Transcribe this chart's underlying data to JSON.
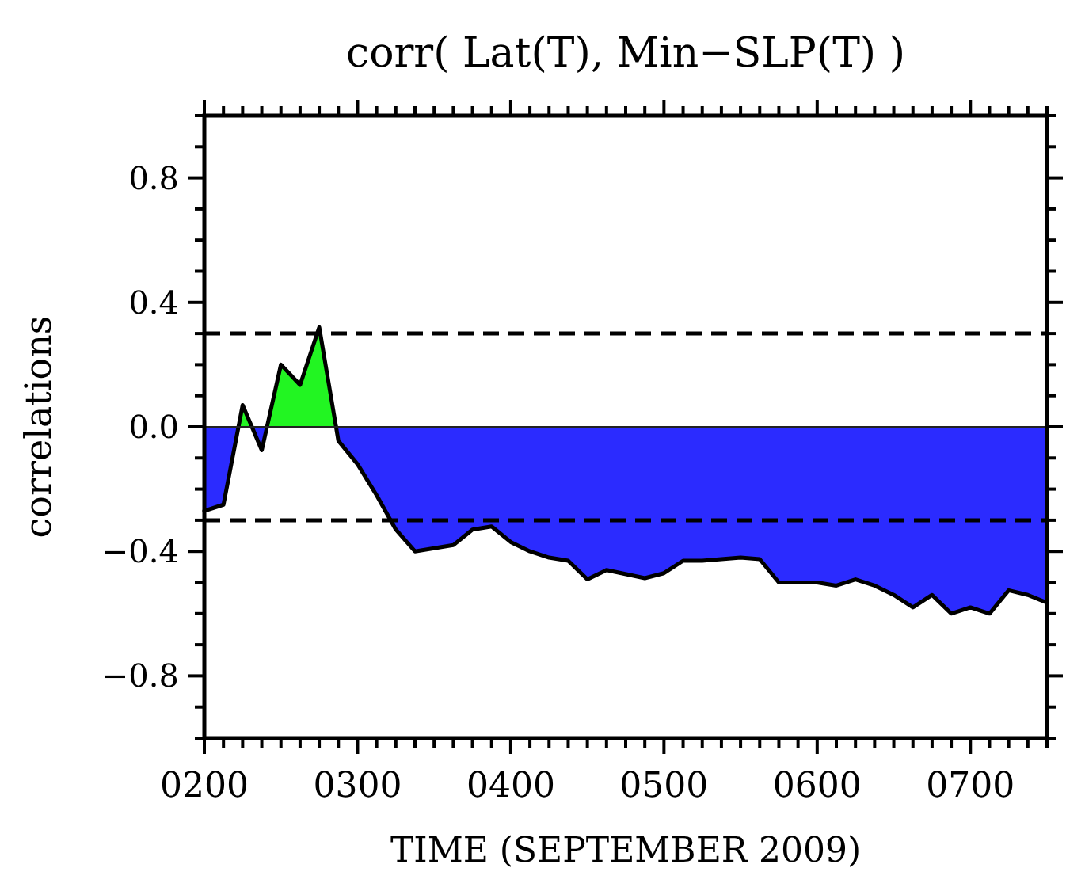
{
  "chart_data": {
    "type": "area",
    "title": "corr( Lat(T), Min−SLP(T) )",
    "xlabel": "TIME (SEPTEMBER 2009)",
    "ylabel": "correlations",
    "series": [
      {
        "color": "#2b2bff",
        "x": [
          "2009-09-02T00:00",
          "2009-09-02T03:00",
          "2009-09-02T05:21",
          "2009-09-02T06:00",
          "2009-09-02T07:27",
          "2009-09-02T09:00",
          "2009-09-02T09:49",
          "2009-09-02T15:00",
          "2009-09-02T20:38",
          "2009-09-02T21:00",
          "2009-09-03T00:00",
          "2009-09-03T03:00",
          "2009-09-03T06:00",
          "2009-09-03T09:00",
          "2009-09-03T12:00",
          "2009-09-03T15:00",
          "2009-09-03T18:00",
          "2009-09-03T21:00",
          "2009-09-04T00:00",
          "2009-09-04T03:00",
          "2009-09-04T06:00",
          "2009-09-04T09:00",
          "2009-09-04T12:00",
          "2009-09-04T15:00",
          "2009-09-04T21:00",
          "2009-09-05T00:00",
          "2009-09-05T03:00",
          "2009-09-05T06:00",
          "2009-09-05T09:00",
          "2009-09-05T12:00",
          "2009-09-05T15:00",
          "2009-09-05T18:00",
          "2009-09-05T21:00",
          "2009-09-06T00:00",
          "2009-09-06T03:00",
          "2009-09-06T06:00",
          "2009-09-06T09:00",
          "2009-09-06T12:00",
          "2009-09-06T15:00",
          "2009-09-06T18:00",
          "2009-09-06T21:00",
          "2009-09-07T00:00",
          "2009-09-07T03:00",
          "2009-09-07T06:00",
          "2009-09-07T09:00",
          "2009-09-07T12:00"
        ],
        "values": [
          -0.27,
          -0.25,
          0,
          null,
          0,
          -0.075,
          0,
          null,
          0,
          -0.045,
          -0.12,
          -0.22,
          -0.33,
          -0.4,
          -0.39,
          -0.38,
          -0.33,
          -0.32,
          -0.37,
          -0.4,
          -0.42,
          -0.43,
          -0.49,
          -0.46,
          -0.486,
          -0.47,
          -0.43,
          -0.43,
          -0.425,
          -0.42,
          -0.425,
          -0.5,
          -0.5,
          -0.5,
          -0.51,
          -0.49,
          -0.51,
          -0.54,
          -0.58,
          -0.54,
          -0.6,
          -0.58,
          -0.6,
          -0.525,
          -0.54,
          -0.565
        ]
      },
      {
        "color": "#22f522",
        "x": [
          "2009-09-02T05:21",
          "2009-09-02T06:00",
          "2009-09-02T07:27",
          "2009-09-02T09:00",
          "2009-09-02T09:49",
          "2009-09-02T12:00",
          "2009-09-02T15:00",
          "2009-09-02T18:00",
          "2009-09-02T20:38"
        ],
        "values": [
          0,
          0.07,
          0,
          null,
          0,
          0.2,
          0.135,
          0.32,
          0
        ]
      }
    ],
    "xlim": [
      "2009-09-02T00:00",
      "2009-09-07T12:00"
    ],
    "xticks": [
      {
        "value": "2009-09-02T00:00",
        "label": "0200"
      },
      {
        "value": "2009-09-02T03:00",
        "label": null
      },
      {
        "value": "2009-09-02T06:00",
        "label": null
      },
      {
        "value": "2009-09-02T09:00",
        "label": null
      },
      {
        "value": "2009-09-02T12:00",
        "label": null
      },
      {
        "value": "2009-09-02T15:00",
        "label": null
      },
      {
        "value": "2009-09-02T18:00",
        "label": null
      },
      {
        "value": "2009-09-02T21:00",
        "label": null
      },
      {
        "value": "2009-09-03T00:00",
        "label": "0300"
      },
      {
        "value": "2009-09-03T03:00",
        "label": null
      },
      {
        "value": "2009-09-03T06:00",
        "label": null
      },
      {
        "value": "2009-09-03T09:00",
        "label": null
      },
      {
        "value": "2009-09-03T12:00",
        "label": null
      },
      {
        "value": "2009-09-03T15:00",
        "label": null
      },
      {
        "value": "2009-09-03T18:00",
        "label": null
      },
      {
        "value": "2009-09-03T21:00",
        "label": null
      },
      {
        "value": "2009-09-04T00:00",
        "label": "0400"
      },
      {
        "value": "2009-09-04T03:00",
        "label": null
      },
      {
        "value": "2009-09-04T06:00",
        "label": null
      },
      {
        "value": "2009-09-04T09:00",
        "label": null
      },
      {
        "value": "2009-09-04T12:00",
        "label": null
      },
      {
        "value": "2009-09-04T15:00",
        "label": null
      },
      {
        "value": "2009-09-04T18:00",
        "label": null
      },
      {
        "value": "2009-09-04T21:00",
        "label": null
      },
      {
        "value": "2009-09-05T00:00",
        "label": "0500"
      },
      {
        "value": "2009-09-05T03:00",
        "label": null
      },
      {
        "value": "2009-09-05T06:00",
        "label": null
      },
      {
        "value": "2009-09-05T09:00",
        "label": null
      },
      {
        "value": "2009-09-05T12:00",
        "label": null
      },
      {
        "value": "2009-09-05T15:00",
        "label": null
      },
      {
        "value": "2009-09-05T18:00",
        "label": null
      },
      {
        "value": "2009-09-05T21:00",
        "label": null
      },
      {
        "value": "2009-09-06T00:00",
        "label": "0600"
      },
      {
        "value": "2009-09-06T03:00",
        "label": null
      },
      {
        "value": "2009-09-06T06:00",
        "label": null
      },
      {
        "value": "2009-09-06T09:00",
        "label": null
      },
      {
        "value": "2009-09-06T12:00",
        "label": null
      },
      {
        "value": "2009-09-06T15:00",
        "label": null
      },
      {
        "value": "2009-09-06T18:00",
        "label": null
      },
      {
        "value": "2009-09-06T21:00",
        "label": null
      },
      {
        "value": "2009-09-07T00:00",
        "label": "0700"
      },
      {
        "value": "2009-09-07T03:00",
        "label": null
      },
      {
        "value": "2009-09-07T06:00",
        "label": null
      },
      {
        "value": "2009-09-07T09:00",
        "label": null
      },
      {
        "value": "2009-09-07T12:00",
        "label": null
      }
    ],
    "ylim": [
      -1,
      1
    ],
    "yticks": [
      {
        "value": -1,
        "label": null
      },
      {
        "value": -0.9,
        "label": null
      },
      {
        "value": -0.8,
        "label": "−0.8"
      },
      {
        "value": -0.7,
        "label": null
      },
      {
        "value": -0.6,
        "label": null
      },
      {
        "value": -0.5,
        "label": null
      },
      {
        "value": -0.4,
        "label": "−0.4"
      },
      {
        "value": -0.3,
        "label": null
      },
      {
        "value": -0.2,
        "label": null
      },
      {
        "value": -0.1,
        "label": null
      },
      {
        "value": 0,
        "label": "0.0"
      },
      {
        "value": 0.1,
        "label": null
      },
      {
        "value": 0.2,
        "label": null
      },
      {
        "value": 0.3,
        "label": null
      },
      {
        "value": 0.4,
        "label": "0.4"
      },
      {
        "value": 0.5,
        "label": null
      },
      {
        "value": 0.6,
        "label": null
      },
      {
        "value": 0.7,
        "label": null
      },
      {
        "value": 0.8,
        "label": "0.8"
      },
      {
        "value": 0.9,
        "label": null
      },
      {
        "value": 1,
        "label": null
      }
    ],
    "ref_lines": [
      {
        "axis": "y",
        "value": 0.3,
        "color": "#000000",
        "line_style": "dashed"
      },
      {
        "axis": "y",
        "value": -0.3,
        "color": "#000000",
        "line_style": "dashed"
      }
    ],
    "grid": false
  }
}
